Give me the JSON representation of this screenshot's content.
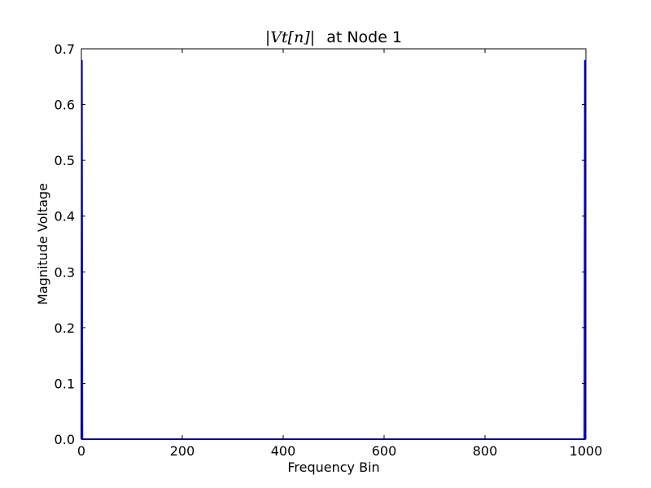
{
  "chart_data": {
    "type": "line",
    "title_math": "|Vt[n]|",
    "title": "at Node 1",
    "xlabel": "Frequency Bin",
    "ylabel": "Magnitude Voltage",
    "xlim": [
      0,
      1000
    ],
    "ylim": [
      0,
      0.7
    ],
    "xticks": [
      0,
      200,
      400,
      600,
      800,
      1000
    ],
    "xtick_labels": [
      "0",
      "200",
      "400",
      "600",
      "800",
      "1000"
    ],
    "yticks": [
      0.0,
      0.1,
      0.2,
      0.3,
      0.4,
      0.5,
      0.6,
      0.7
    ],
    "ytick_labels": [
      "0.0",
      "0.1",
      "0.2",
      "0.3",
      "0.4",
      "0.5",
      "0.6",
      "0.7"
    ],
    "grid": false,
    "line_color": "#0000ff",
    "series": [
      {
        "x": [
          0,
          1,
          2,
          3,
          4,
          5,
          10,
          100,
          300,
          500,
          700,
          900,
          990,
          995,
          996,
          997,
          998,
          999
        ],
        "y": [
          0.0,
          0.68,
          0.0,
          0.0,
          0.0,
          0.0,
          0.0,
          0.0,
          0.0,
          0.0,
          0.0,
          0.0,
          0.0,
          0.0,
          0.0,
          0.0,
          0.68,
          0.0
        ]
      }
    ]
  }
}
